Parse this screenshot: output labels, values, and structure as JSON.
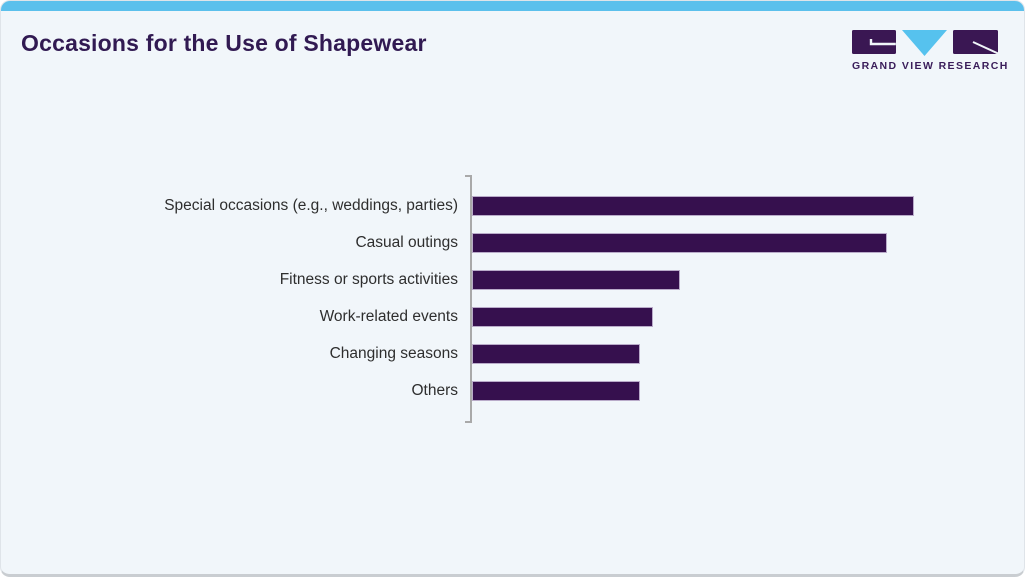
{
  "header": {
    "title": "Occasions for the Use of Shapewear",
    "logo": {
      "wordmark": "GRAND VIEW RESEARCH"
    }
  },
  "chart_data": {
    "type": "bar",
    "orientation": "horizontal",
    "title": "Occasions for the Use of Shapewear",
    "categories": [
      "Special occasions (e.g., weddings, parties)",
      "Casual outings",
      "Fitness or sports activities",
      "Work-related events",
      "Changing seasons",
      "Others"
    ],
    "values": [
      100,
      94,
      47,
      41,
      38,
      38
    ],
    "values_note": "No numeric axis, ticks or data labels are shown in the figure; values are relative bar lengths with the longest bar normalized to 100.",
    "xlabel": "",
    "ylabel": "",
    "legend": "none",
    "grid": false,
    "axis_style": "left bracket spine only, light gray",
    "bar_color": "#36104e",
    "bar_border_color": "#b9abc9",
    "axis_line_color": "#a9a9a9"
  },
  "colors": {
    "background": "#f1f6fa",
    "top_accent_bar": "#5bc0ec",
    "title_text": "#311a52",
    "label_text": "#2e2e2e",
    "logo_purple": "#3a1753",
    "logo_blue": "#56c2ee",
    "card_border": "#c9cdd1"
  }
}
